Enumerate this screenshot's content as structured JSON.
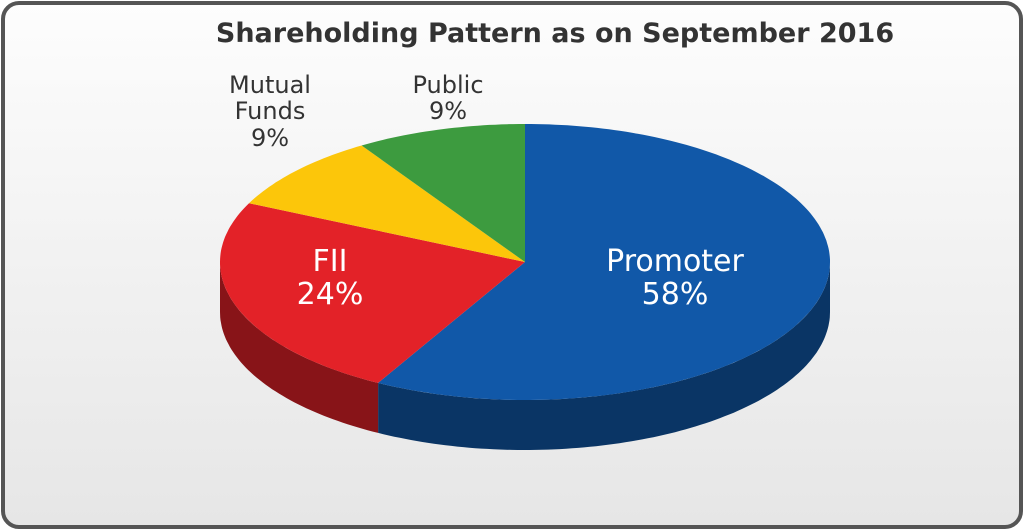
{
  "chart_data": {
    "type": "pie3d",
    "title": "Shareholding Pattern as on September 2016",
    "categories": [
      "Promoter",
      "FII",
      "Mutual Funds",
      "Public"
    ],
    "values": [
      58,
      24,
      9,
      9
    ],
    "value_labels": [
      "58%",
      "24%",
      "9%",
      "9%"
    ],
    "colors": [
      "#1158a8",
      "#e32228",
      "#fcc60a",
      "#3d9b3f"
    ]
  }
}
